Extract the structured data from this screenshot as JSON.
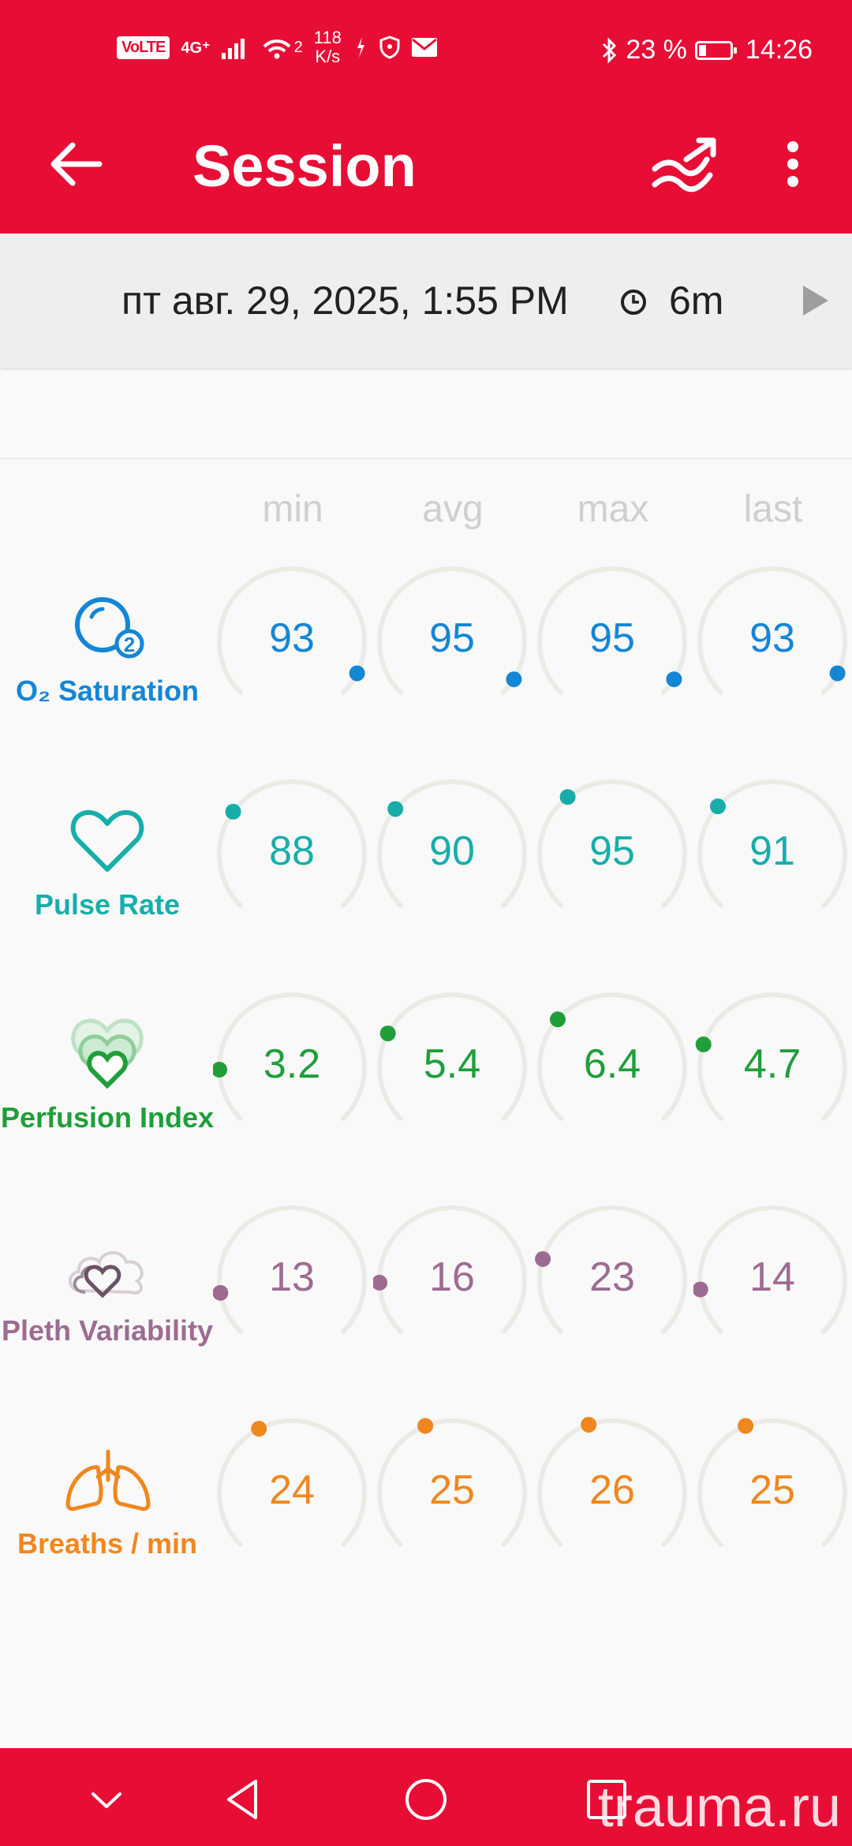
{
  "status_bar": {
    "volte": "VoLTE",
    "network": "4G⁺",
    "wifi_sup": "2",
    "speed_value": "118",
    "speed_unit": "K/s",
    "battery": "23 %",
    "time": "14:26"
  },
  "app_bar": {
    "title": "Session",
    "icons": [
      "back-arrow-icon",
      "trend-chart-icon",
      "more-vert-icon"
    ]
  },
  "session": {
    "date": "пт авг. 29, 2025, 1:55 PM",
    "duration": "6m",
    "icons": [
      "clock-icon",
      "play-icon"
    ]
  },
  "columns": [
    "min",
    "avg",
    "max",
    "last"
  ],
  "metrics": [
    {
      "label": "O₂ Saturation",
      "icon": "o2-saturation-icon",
      "color": "#1386d6",
      "values": [
        "93",
        "95",
        "95",
        "93"
      ],
      "levels": [
        0.93,
        0.95,
        0.95,
        0.93
      ]
    },
    {
      "label": "Pulse Rate",
      "icon": "heart-icon",
      "color": "#17aeaa",
      "values": [
        "88",
        "90",
        "95",
        "91"
      ],
      "levels": [
        0.3,
        0.31,
        0.36,
        0.32
      ]
    },
    {
      "label": "Perfusion Index",
      "icon": "perfusion-heart-icon",
      "color": "#1f9e3a",
      "values": [
        "3.2",
        "5.4",
        "6.4",
        "4.7"
      ],
      "levels": [
        0.16,
        0.27,
        0.32,
        0.235
      ]
    },
    {
      "label": "Pleth Variability",
      "icon": "pleth-cloud-heart-icon",
      "color": "#9d6b92",
      "values": [
        "13",
        "16",
        "23",
        "14"
      ],
      "levels": [
        0.13,
        0.16,
        0.23,
        0.14
      ]
    },
    {
      "label": "Breaths / min",
      "icon": "lungs-icon",
      "color": "#f0871e",
      "values": [
        "24",
        "25",
        "26",
        "25"
      ],
      "levels": [
        0.4,
        0.42,
        0.43,
        0.42
      ]
    }
  ],
  "nav_bar": {
    "icons": [
      "chevron-down-icon",
      "back-triangle-icon",
      "home-circle-icon",
      "recents-square-icon"
    ],
    "watermark": "trauma.ru"
  }
}
